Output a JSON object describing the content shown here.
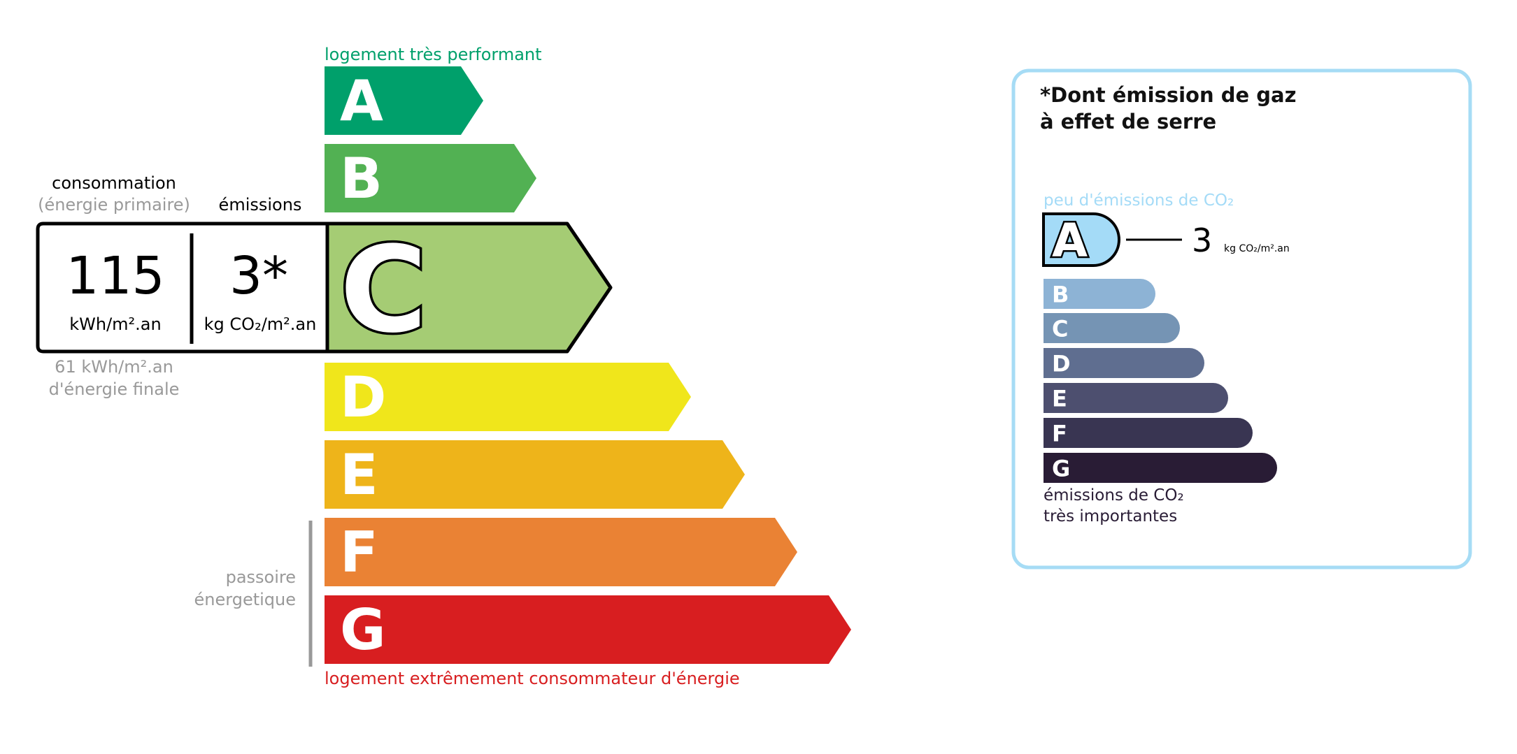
{
  "energy": {
    "top_label": "logement très performant",
    "bottom_label": "logement extrêmement consommateur d'énergie",
    "top_label_color": "#00a06b",
    "bottom_label_color": "#d81e20",
    "current_class": "C",
    "classes": [
      {
        "letter": "A",
        "color": "#00a06b"
      },
      {
        "letter": "B",
        "color": "#52b153"
      },
      {
        "letter": "C",
        "color": "#a5cc74"
      },
      {
        "letter": "D",
        "color": "#f0e61b"
      },
      {
        "letter": "E",
        "color": "#eeb41a"
      },
      {
        "letter": "F",
        "color": "#ea8234"
      },
      {
        "letter": "G",
        "color": "#d81e20"
      }
    ],
    "consumption_heading": "consommation",
    "consumption_subheading": "(énergie primaire)",
    "emissions_heading": "émissions",
    "consumption_value": "115",
    "consumption_unit": "kWh/m².an",
    "emissions_value": "3*",
    "emissions_unit": "kg CO₂/m².an",
    "final_energy_value": "61 kWh/m².an",
    "final_energy_label": "d'énergie finale",
    "passoire_line1": "passoire",
    "passoire_line2": "énergetique"
  },
  "ghg": {
    "title_line1": "*Dont émission de gaz",
    "title_line2": "à effet de serre",
    "top_label": "peu d'émissions de CO₂",
    "bottom_label_line1": "émissions de CO₂",
    "bottom_label_line2": "très importantes",
    "border_color": "#a6dcf5",
    "current_class": "A",
    "value": "3",
    "unit": "kg CO₂/m².an",
    "classes": [
      {
        "letter": "A",
        "color": "#a4dbf7"
      },
      {
        "letter": "B",
        "color": "#8db3d5"
      },
      {
        "letter": "C",
        "color": "#7594b4"
      },
      {
        "letter": "D",
        "color": "#5f6e90"
      },
      {
        "letter": "E",
        "color": "#4d4f6f"
      },
      {
        "letter": "F",
        "color": "#393552"
      },
      {
        "letter": "G",
        "color": "#291c35"
      }
    ]
  }
}
